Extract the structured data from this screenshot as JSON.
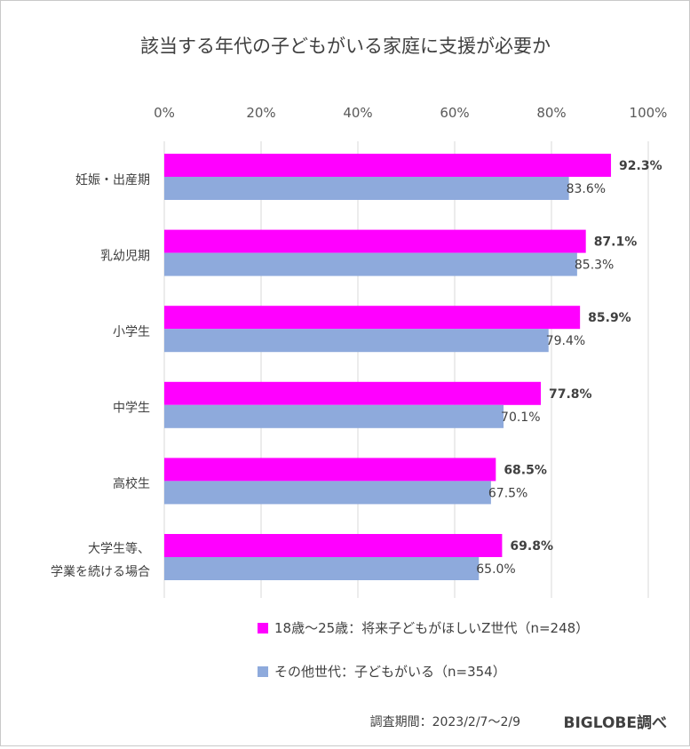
{
  "chart_data": {
    "type": "bar",
    "orientation": "horizontal",
    "title": "該当する年代の子どもがいる家庭に支援が必要か",
    "categories": [
      "妊娠・出産期",
      "乳幼児期",
      "小学生",
      "中学生",
      "高校生",
      "大学生等、\n学業を続ける場合"
    ],
    "xlim": [
      0,
      100
    ],
    "x_ticks": [
      "0%",
      "20%",
      "40%",
      "60%",
      "80%",
      "100%"
    ],
    "grid": true,
    "legend_position": "bottom",
    "series": [
      {
        "name": "18歳〜25歳：将来子どもがほしいZ世代（n=248）",
        "color": "#ff00ff",
        "values": [
          92.3,
          87.1,
          85.9,
          77.8,
          68.5,
          69.8
        ],
        "labels": [
          "92.3%",
          "87.1%",
          "85.9%",
          "77.8%",
          "68.5%",
          "69.8%"
        ]
      },
      {
        "name": "その他世代：子どもがいる（n=354）",
        "color": "#8eaadc",
        "values": [
          83.6,
          85.3,
          79.4,
          70.1,
          67.5,
          65.0
        ],
        "labels": [
          "83.6%",
          "85.3%",
          "79.4%",
          "70.1%",
          "67.5%",
          "65.0%"
        ]
      }
    ]
  },
  "footer": {
    "period": "調査期間：2023/2/7〜2/9",
    "source": "BIGLOBE調べ"
  }
}
